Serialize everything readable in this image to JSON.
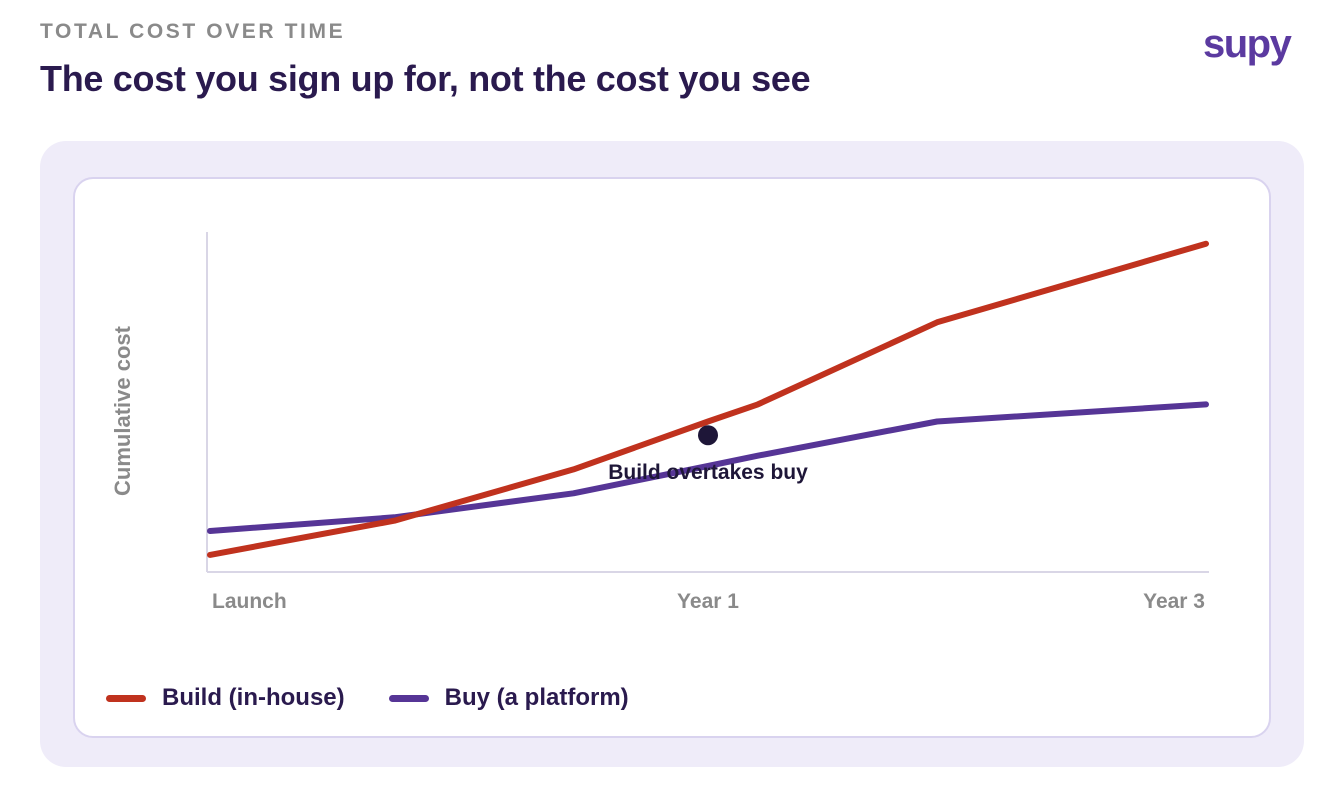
{
  "header": {
    "eyebrow": "TOTAL COST OVER TIME",
    "title": "The cost you sign up for, not the cost you see",
    "logo": "supy"
  },
  "colors": {
    "build": "#c0321e",
    "buy": "#563596",
    "accent": "#5b3aa0",
    "marker": "#1e1638"
  },
  "chart_data": {
    "type": "line",
    "title": "",
    "xlabel": "",
    "ylabel": "Cumulative cost",
    "x": [
      0,
      0.37,
      0.73,
      1,
      1.1,
      1.46,
      2
    ],
    "xlim": [
      0,
      2
    ],
    "ylim": [
      0,
      100
    ],
    "ticks": [
      {
        "value": 0,
        "label": "Launch",
        "anchor": "start"
      },
      {
        "value": 1,
        "label": "Year 1",
        "anchor": "middle"
      },
      {
        "value": 2,
        "label": "Year 3",
        "anchor": "end"
      }
    ],
    "grid": false,
    "y_ticks_shown": false,
    "series": [
      {
        "name": "Build (in-house)",
        "color": "#c0321e",
        "values": [
          5,
          15,
          30,
          44,
          49,
          73,
          96
        ]
      },
      {
        "name": "Buy (a platform)",
        "color": "#563596",
        "values": [
          12,
          16,
          23,
          31,
          34,
          44,
          49
        ]
      }
    ],
    "annotation": {
      "label": "Build overtakes buy",
      "x": 1,
      "y": 40
    },
    "legend_position": "bottom-left"
  }
}
